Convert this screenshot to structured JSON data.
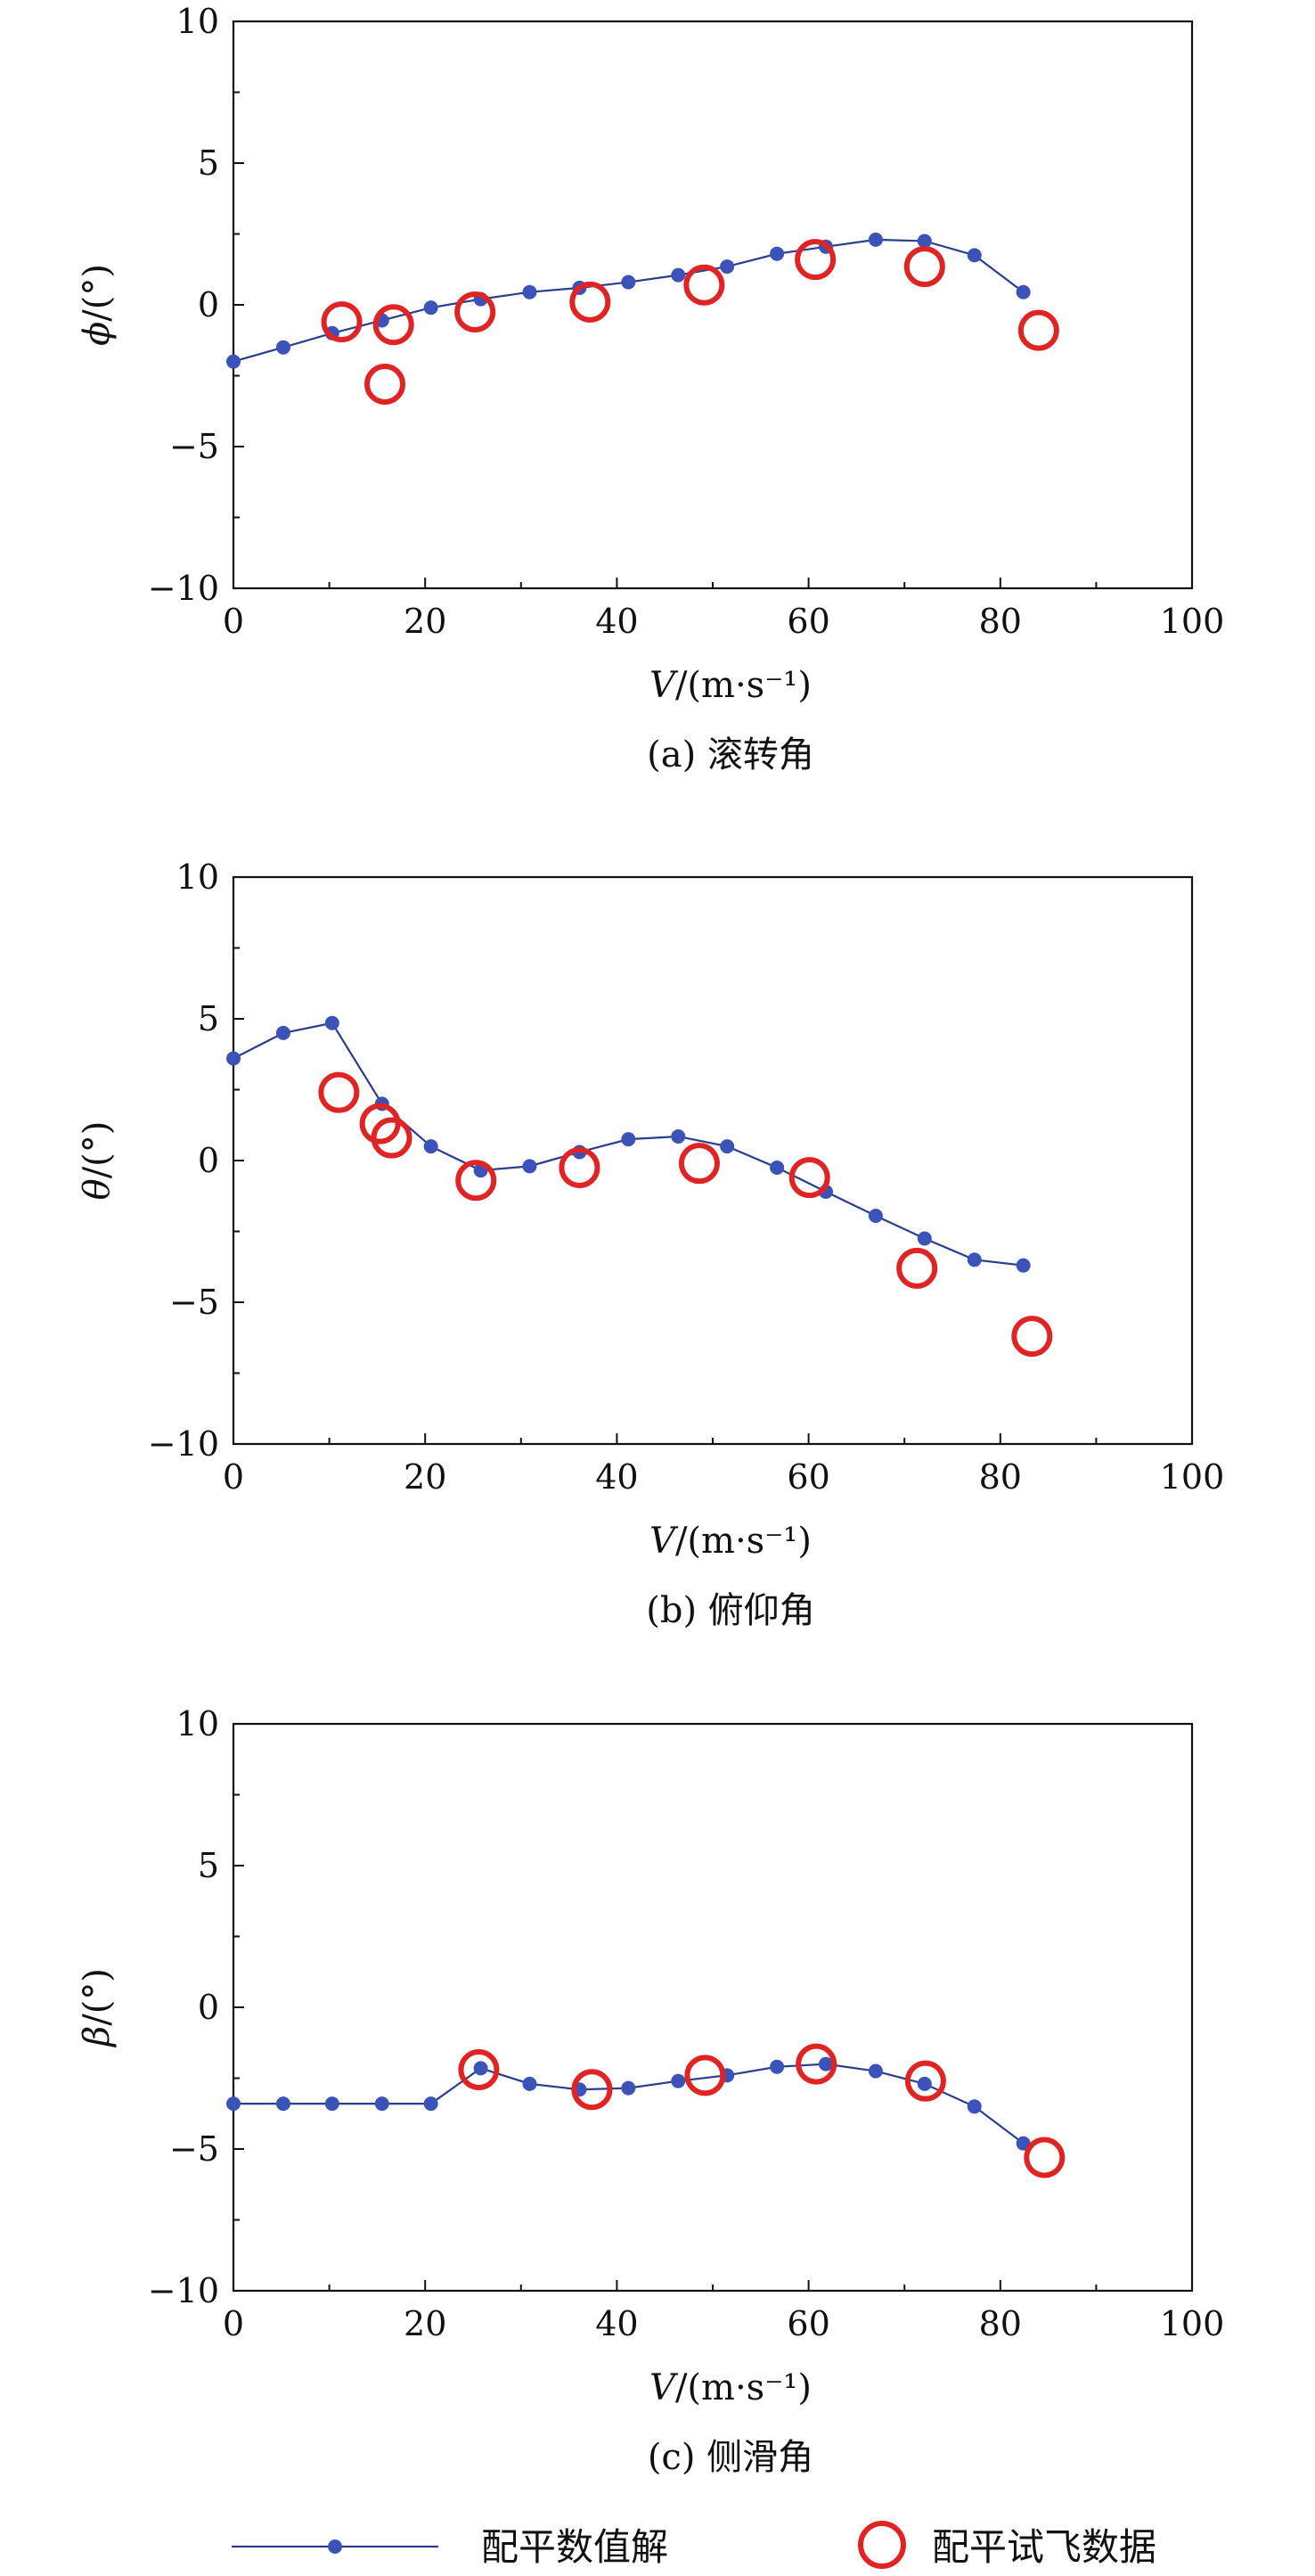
{
  "colors": {
    "solution": "#2a3d8f",
    "solution_marker": "#3b53b8",
    "flight": "#e02424",
    "axis": "#111111"
  },
  "legend": {
    "solution_label": "配平数值解",
    "flight_label": "配平试飞数据"
  },
  "chart_data": [
    {
      "type": "line",
      "caption": "(a) 滚转角",
      "ylabel": "ϕ/(°)",
      "xlabel": "V/(m·s⁻¹)",
      "xlim": [
        0,
        100
      ],
      "ylim": [
        -10,
        10
      ],
      "xticks": [
        0,
        20,
        40,
        60,
        80,
        100
      ],
      "yticks": [
        -10,
        -5,
        0,
        5,
        10
      ],
      "xtick_labels": [
        "0",
        "20",
        "40",
        "60",
        "80",
        "100"
      ],
      "ytick_labels": [
        "−10",
        "−5",
        "0",
        "5",
        "10"
      ],
      "grid": false,
      "series": [
        {
          "name": "配平数值解",
          "marker": "dot",
          "x": [
            0,
            5.2,
            10.3,
            15.5,
            20.6,
            25.8,
            30.9,
            36.1,
            41.2,
            46.4,
            51.5,
            56.7,
            61.8,
            67.0,
            72.1,
            77.3,
            82.4
          ],
          "y": [
            -2.0,
            -1.5,
            -1.0,
            -0.55,
            -0.1,
            0.2,
            0.45,
            0.6,
            0.8,
            1.05,
            1.35,
            1.8,
            2.05,
            2.3,
            2.25,
            1.75,
            0.45
          ]
        },
        {
          "name": "配平试飞数据",
          "marker": "circle",
          "x": [
            11.3,
            15.8,
            16.7,
            25.2,
            37.2,
            49.1,
            60.7,
            72.1,
            84.0
          ],
          "y": [
            -0.6,
            -2.8,
            -0.7,
            -0.25,
            0.1,
            0.7,
            1.6,
            1.35,
            -0.9
          ]
        }
      ]
    },
    {
      "type": "line",
      "caption": "(b) 俯仰角",
      "ylabel": "θ/(°)",
      "xlabel": "V/(m·s⁻¹)",
      "xlim": [
        0,
        100
      ],
      "ylim": [
        -10,
        10
      ],
      "xticks": [
        0,
        20,
        40,
        60,
        80,
        100
      ],
      "yticks": [
        -10,
        -5,
        0,
        5,
        10
      ],
      "xtick_labels": [
        "0",
        "20",
        "40",
        "60",
        "80",
        "100"
      ],
      "ytick_labels": [
        "−10",
        "−5",
        "0",
        "5",
        "10"
      ],
      "grid": false,
      "series": [
        {
          "name": "配平数值解",
          "marker": "dot",
          "x": [
            0,
            5.2,
            10.3,
            15.5,
            20.6,
            25.8,
            30.9,
            36.1,
            41.2,
            46.4,
            51.5,
            56.7,
            61.8,
            67.0,
            72.1,
            77.3,
            82.4
          ],
          "y": [
            3.6,
            4.5,
            4.85,
            2.0,
            0.5,
            -0.35,
            -0.2,
            0.3,
            0.75,
            0.85,
            0.5,
            -0.25,
            -1.1,
            -1.95,
            -2.75,
            -3.5,
            -3.7
          ]
        },
        {
          "name": "配平试飞数据",
          "marker": "circle",
          "x": [
            11.0,
            15.3,
            16.5,
            25.3,
            36.1,
            48.6,
            60.1,
            71.3,
            83.3
          ],
          "y": [
            2.4,
            1.3,
            0.8,
            -0.7,
            -0.25,
            -0.1,
            -0.6,
            -3.8,
            -6.2
          ]
        }
      ]
    },
    {
      "type": "line",
      "caption": "(c) 侧滑角",
      "ylabel": "β/(°)",
      "xlabel": "V/(m·s⁻¹)",
      "xlim": [
        0,
        100
      ],
      "ylim": [
        -10,
        10
      ],
      "xticks": [
        0,
        20,
        40,
        60,
        80,
        100
      ],
      "yticks": [
        -10,
        -5,
        0,
        5,
        10
      ],
      "xtick_labels": [
        "0",
        "20",
        "40",
        "60",
        "80",
        "100"
      ],
      "ytick_labels": [
        "−10",
        "−5",
        "0",
        "5",
        "10"
      ],
      "grid": false,
      "series": [
        {
          "name": "配平数值解",
          "marker": "dot",
          "x": [
            0,
            5.2,
            10.3,
            15.5,
            20.6,
            25.8,
            30.9,
            36.1,
            41.2,
            46.4,
            51.5,
            56.7,
            61.8,
            67.0,
            72.1,
            77.3,
            82.4
          ],
          "y": [
            -3.4,
            -3.4,
            -3.4,
            -3.4,
            -3.4,
            -2.15,
            -2.7,
            -2.9,
            -2.85,
            -2.6,
            -2.4,
            -2.1,
            -2.0,
            -2.25,
            -2.7,
            -3.5,
            -4.8
          ]
        },
        {
          "name": "配平试飞数据",
          "marker": "circle",
          "x": [
            25.6,
            37.4,
            49.2,
            60.8,
            72.2,
            84.6
          ],
          "y": [
            -2.2,
            -2.9,
            -2.4,
            -2.0,
            -2.6,
            -5.3
          ]
        }
      ]
    }
  ]
}
